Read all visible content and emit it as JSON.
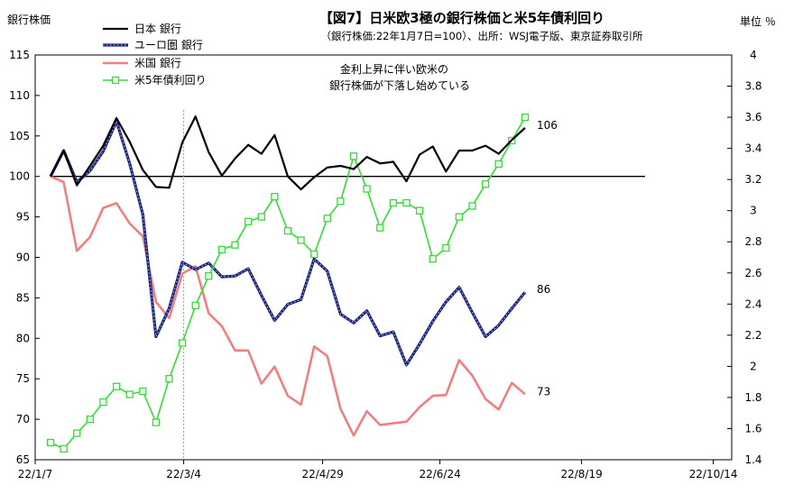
{
  "chart_data": {
    "type": "line",
    "title": "【図7】日米欧3極の銀行株価と米5年債利回り",
    "subtitle": "（銀行株価:22年1月7日=100）、出所：WSJ電子版、東京証券取引所",
    "ylabel_left": "銀行株価",
    "ylabel_right": "単位 ％",
    "annotation": [
      "金利上昇に伴い欧米の",
      "銀行株価が下落し始めている"
    ],
    "x_ticks": [
      "22/1/7",
      "22/3/4",
      "22/4/29",
      "22/6/24",
      "22/8/19",
      "22/10/14"
    ],
    "ylim_left": [
      65,
      115
    ],
    "yticks_left": [
      65,
      70,
      75,
      80,
      85,
      90,
      95,
      100,
      105,
      110,
      115
    ],
    "ylim_right": [
      1.4,
      4.0
    ],
    "yticks_right": [
      "1.4",
      "1.6",
      "1.8",
      "2",
      "2.2",
      "2.4",
      "2.6",
      "2.8",
      "3",
      "3.2",
      "3.4",
      "3.6",
      "3.8",
      "4"
    ],
    "reference_line": 100,
    "vertical_marker": "22/3/4",
    "legend_position": "top-left",
    "series": [
      {
        "name": "日本 銀行",
        "axis": "left",
        "color": "#000000",
        "marker": "none",
        "end_label": "106",
        "values": [
          100.0,
          103.2,
          98.9,
          101.3,
          103.8,
          107.2,
          104.3,
          100.8,
          98.7,
          98.6,
          104.2,
          107.4,
          103.0,
          100.1,
          102.2,
          103.9,
          102.8,
          105.1,
          100.0,
          98.4,
          99.9,
          101.1,
          101.3,
          100.9,
          102.4,
          101.6,
          101.8,
          99.4,
          102.7,
          103.7,
          100.6,
          103.2,
          103.2,
          103.8,
          102.8,
          104.5,
          106.0
        ]
      },
      {
        "name": "ユーロ圏 銀行",
        "axis": "left",
        "color": "#1a237e",
        "marker": "none",
        "end_label": "86",
        "values": [
          100.0,
          103.2,
          99.3,
          100.7,
          103.1,
          106.8,
          101.6,
          95.3,
          80.2,
          83.7,
          89.4,
          88.5,
          89.3,
          87.6,
          87.7,
          88.6,
          85.3,
          82.2,
          84.2,
          84.8,
          89.8,
          88.3,
          83.0,
          81.9,
          83.4,
          80.3,
          80.8,
          76.7,
          79.3,
          82.1,
          84.5,
          86.3,
          83.2,
          80.2,
          81.6,
          83.7,
          85.7
        ]
      },
      {
        "name": "米国 銀行",
        "axis": "left",
        "color": "#f08080",
        "marker": "none",
        "end_label": "73",
        "values": [
          100.0,
          99.3,
          90.8,
          92.5,
          96.1,
          96.7,
          94.2,
          92.6,
          84.5,
          82.5,
          88.0,
          88.9,
          83.1,
          81.5,
          78.5,
          78.5,
          74.4,
          76.5,
          72.9,
          71.8,
          79.0,
          77.8,
          71.3,
          68.0,
          71.0,
          69.3,
          69.5,
          69.7,
          71.5,
          72.9,
          73.0,
          77.3,
          75.4,
          72.5,
          71.2,
          74.5,
          73.1
        ]
      },
      {
        "name": "米5年債利回り",
        "axis": "right",
        "color": "#33dd33",
        "marker": "square",
        "values": [
          1.51,
          1.47,
          1.57,
          1.66,
          1.77,
          1.87,
          1.82,
          1.84,
          1.64,
          1.92,
          2.15,
          2.39,
          2.58,
          2.75,
          2.78,
          2.93,
          2.96,
          3.09,
          2.87,
          2.81,
          2.72,
          2.95,
          3.06,
          3.35,
          3.14,
          2.89,
          3.05,
          3.05,
          3.0,
          2.69,
          2.76,
          2.96,
          3.03,
          3.17,
          3.3,
          3.45,
          3.6
        ]
      }
    ]
  }
}
